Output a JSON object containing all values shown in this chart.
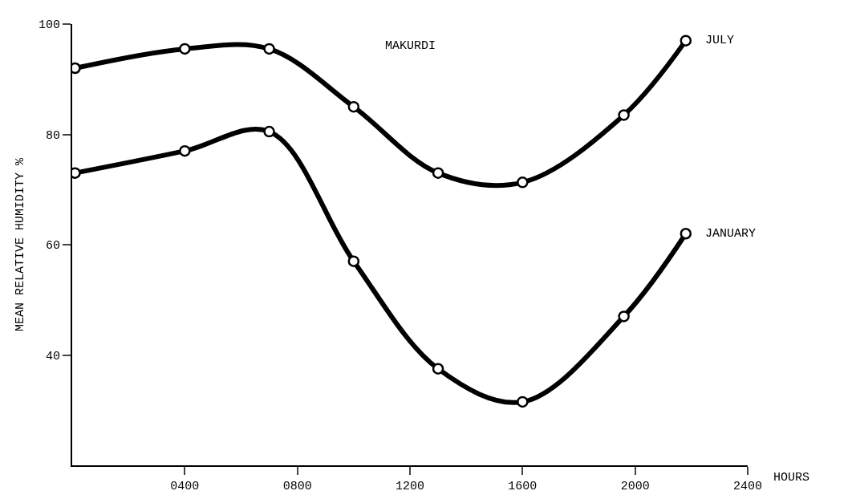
{
  "chart_data": {
    "type": "line",
    "title": "MAKURDI",
    "xlabel": "HOURS",
    "ylabel": "MEAN RELATIVE HUMIDITY %",
    "xlim": [
      0,
      2400
    ],
    "xticks": [
      {
        "value": 400,
        "label": "0400"
      },
      {
        "value": 800,
        "label": "0800"
      },
      1200,
      1600,
      2000,
      2400
    ],
    "ylim": [
      20,
      100
    ],
    "yticks": [
      40,
      60,
      80,
      100
    ],
    "legend": false,
    "marker": "circle",
    "line_style": "solid",
    "x": [
      10,
      400,
      700,
      1000,
      1300,
      1600,
      1960,
      2180
    ],
    "series": [
      {
        "name": "JULY",
        "color": "#000000",
        "values": [
          92,
          95.5,
          95.5,
          85,
          73,
          71.3,
          83.5,
          97
        ]
      },
      {
        "name": "JANUARY",
        "color": "#000000",
        "values": [
          73,
          77,
          80.5,
          57,
          37.5,
          31.5,
          47,
          62
        ]
      }
    ]
  }
}
